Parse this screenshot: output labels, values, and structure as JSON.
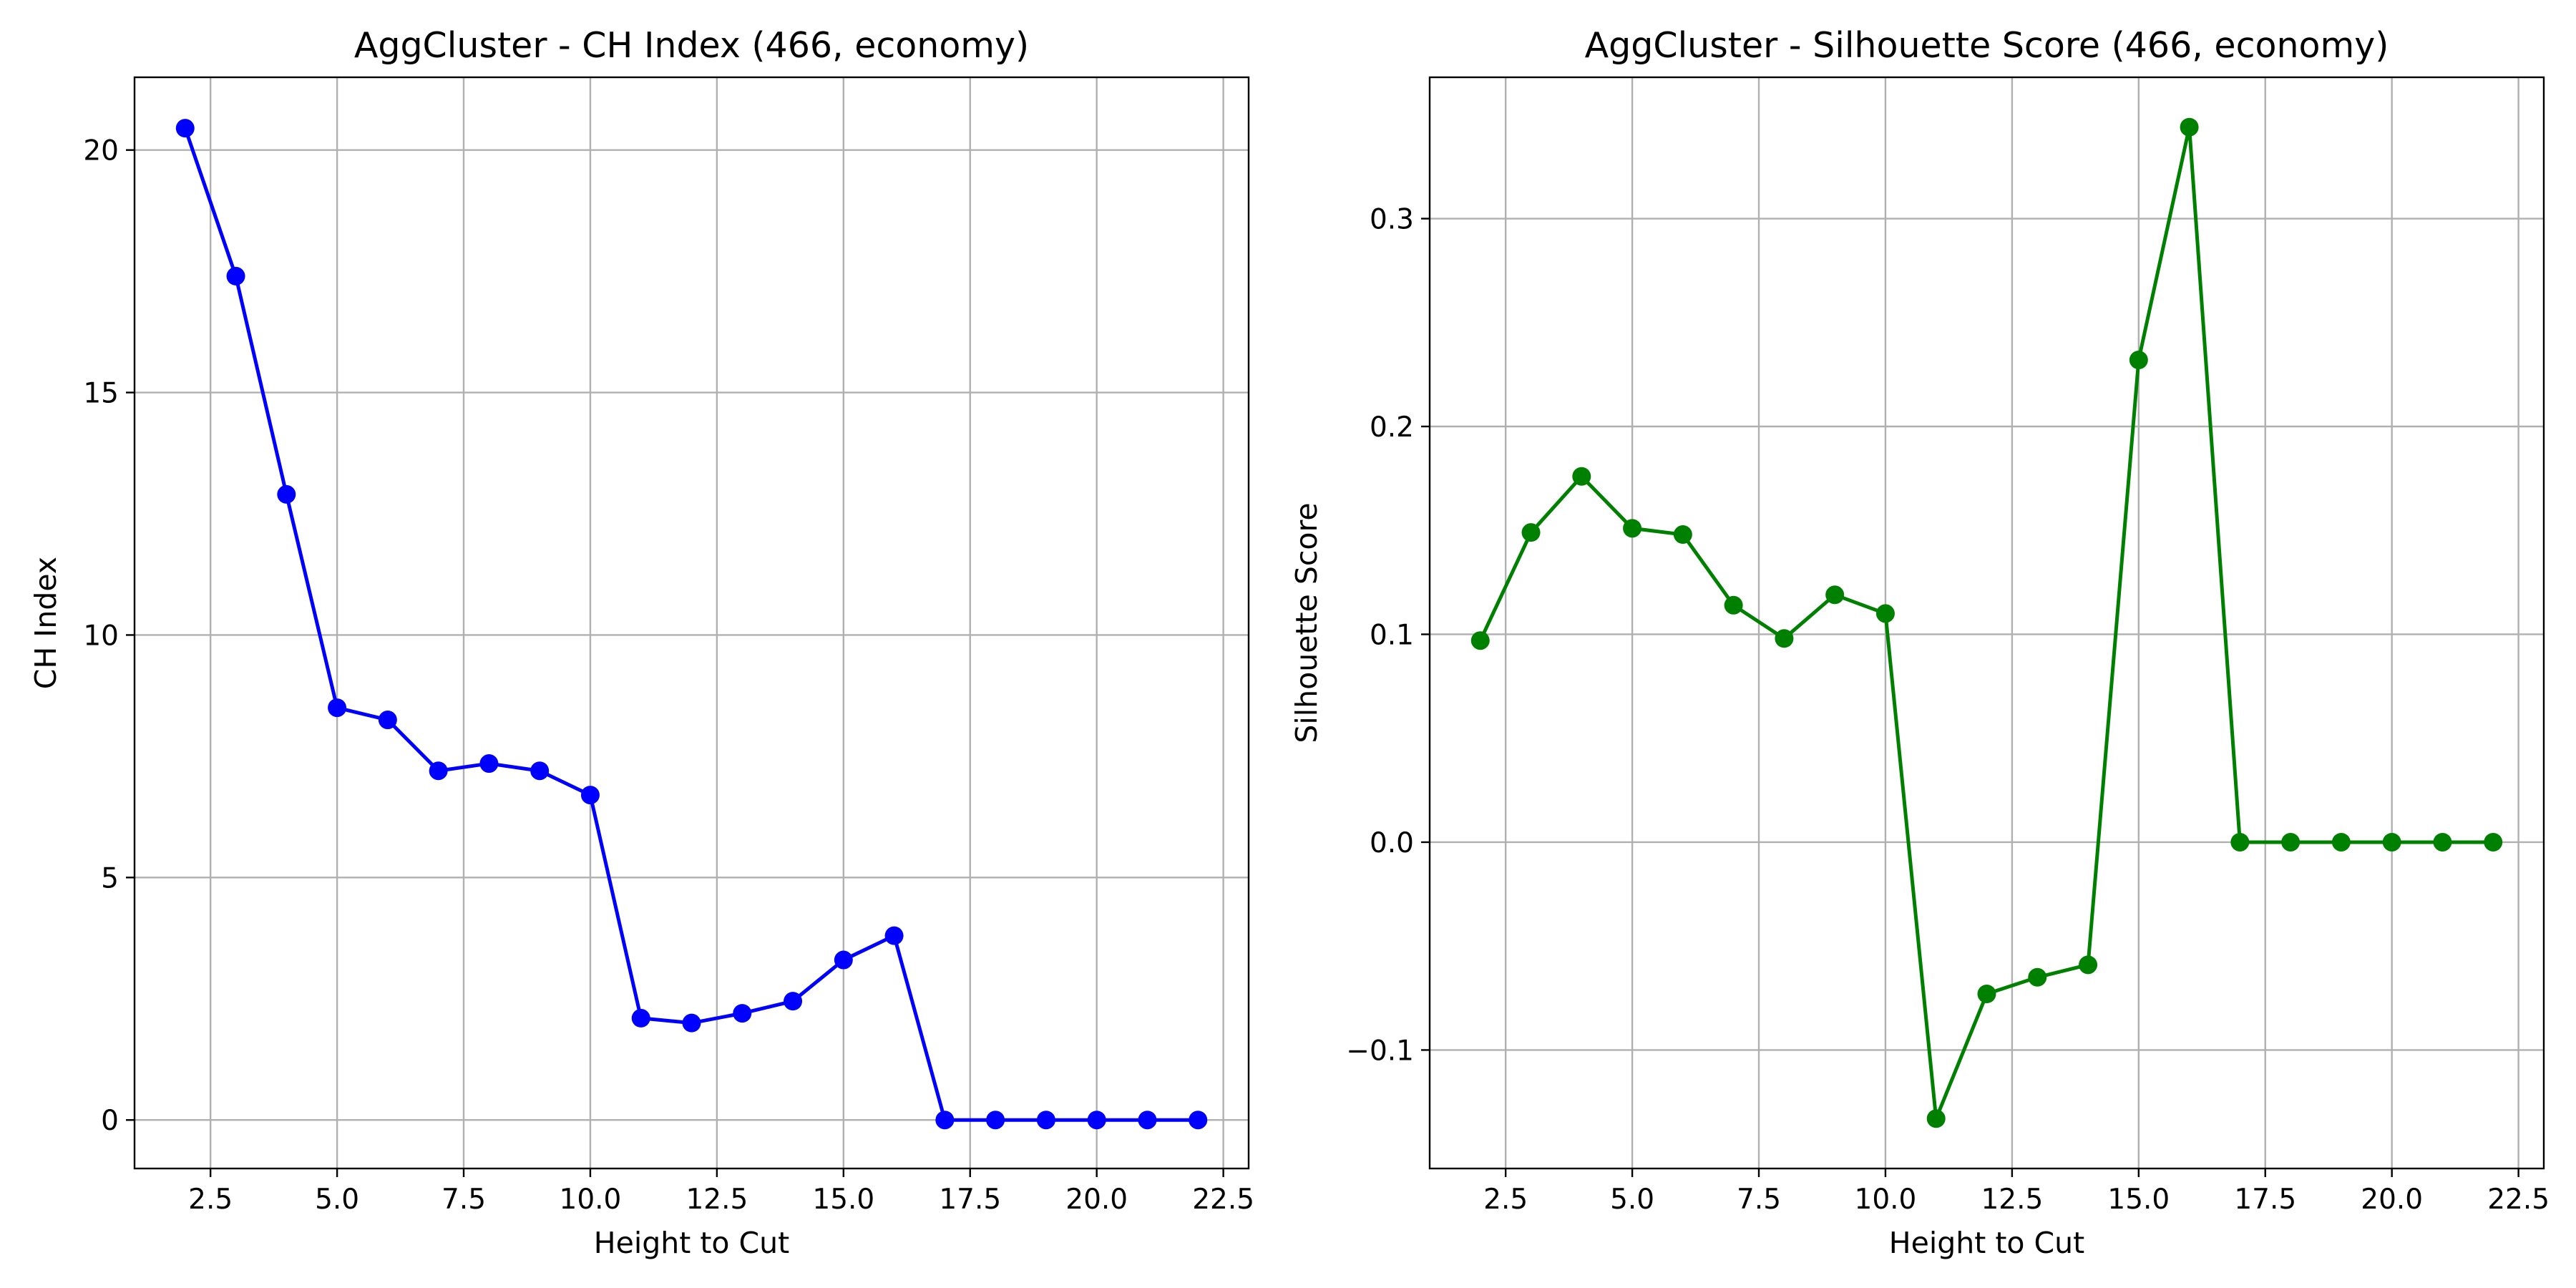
{
  "chart_data": [
    {
      "type": "line",
      "title": "AggCluster - CH Index (466, economy)",
      "xlabel": "Height to Cut",
      "ylabel": "CH Index",
      "xlim": [
        1.0,
        23.0
      ],
      "ylim": [
        -1.0,
        21.5
      ],
      "xticks": [
        2.5,
        5.0,
        7.5,
        10.0,
        12.5,
        15.0,
        17.5,
        20.0,
        22.5
      ],
      "xtick_labels": [
        "2.5",
        "5.0",
        "7.5",
        "10.0",
        "12.5",
        "15.0",
        "17.5",
        "20.0",
        "22.5"
      ],
      "yticks": [
        0,
        5,
        10,
        15,
        20
      ],
      "ytick_labels": [
        "0",
        "5",
        "10",
        "15",
        "20"
      ],
      "grid": true,
      "marker": "circle",
      "color": "#0000ff",
      "series": [
        {
          "x": [
            2,
            3,
            4,
            5,
            6,
            7,
            8,
            9,
            10,
            11,
            12,
            13,
            14,
            15,
            16,
            17,
            18,
            19,
            20,
            21,
            22
          ],
          "values": [
            20.45,
            17.4,
            12.9,
            8.5,
            8.25,
            7.2,
            7.35,
            7.2,
            6.7,
            2.1,
            2.0,
            2.2,
            2.45,
            3.3,
            3.8,
            0.0,
            0.0,
            0.0,
            0.0,
            0.0,
            0.0
          ]
        }
      ]
    },
    {
      "type": "line",
      "title": "AggCluster - Silhouette Score (466, economy)",
      "xlabel": "Height to Cut",
      "ylabel": "Silhouette Score",
      "xlim": [
        1.0,
        23.0
      ],
      "ylim": [
        -0.157,
        0.368
      ],
      "xticks": [
        2.5,
        5.0,
        7.5,
        10.0,
        12.5,
        15.0,
        17.5,
        20.0,
        22.5
      ],
      "xtick_labels": [
        "2.5",
        "5.0",
        "7.5",
        "10.0",
        "12.5",
        "15.0",
        "17.5",
        "20.0",
        "22.5"
      ],
      "yticks": [
        -0.1,
        0.0,
        0.1,
        0.2,
        0.3
      ],
      "ytick_labels": [
        "−0.1",
        "0.0",
        "0.1",
        "0.2",
        "0.3"
      ],
      "grid": true,
      "marker": "circle",
      "color": "#008000",
      "series": [
        {
          "x": [
            2,
            3,
            4,
            5,
            6,
            7,
            8,
            9,
            10,
            11,
            12,
            13,
            14,
            15,
            16,
            17,
            18,
            19,
            20,
            21,
            22
          ],
          "values": [
            0.097,
            0.149,
            0.176,
            0.151,
            0.148,
            0.114,
            0.098,
            0.119,
            0.11,
            -0.133,
            -0.073,
            -0.065,
            -0.059,
            0.232,
            0.344,
            0.0,
            0.0,
            0.0,
            0.0,
            0.0,
            0.0
          ]
        }
      ]
    }
  ]
}
